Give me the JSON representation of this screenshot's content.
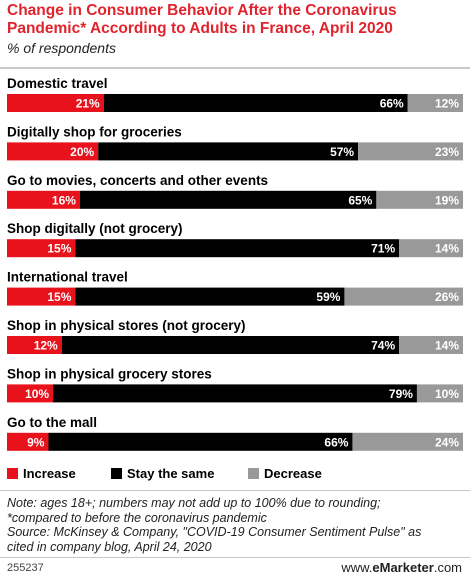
{
  "title": "Change in Consumer Behavior After the Coronavirus Pandemic* According to Adults in France, April 2020",
  "subtitle": "% of respondents",
  "colors": {
    "title": "#e1232d",
    "increase": "#e8121c",
    "same": "#000000",
    "decrease": "#999999"
  },
  "chart_data": {
    "type": "bar",
    "stacked": true,
    "orientation": "horizontal",
    "categories": [
      "Domestic travel",
      "Digitally shop for groceries",
      "Go to movies, concerts and other events",
      "Shop digitally (not grocery)",
      "International travel",
      "Shop in physical stores (not grocery)",
      "Shop in physical grocery stores",
      "Go to the mall"
    ],
    "series": [
      {
        "name": "Increase",
        "values": [
          21,
          20,
          16,
          15,
          15,
          12,
          10,
          9
        ]
      },
      {
        "name": "Stay the same",
        "values": [
          66,
          57,
          65,
          71,
          59,
          74,
          79,
          66
        ]
      },
      {
        "name": "Decrease",
        "values": [
          12,
          23,
          19,
          14,
          26,
          14,
          10,
          24
        ]
      }
    ],
    "value_suffix": "%",
    "legend_position": "bottom-left"
  },
  "legend": [
    "Increase",
    "Stay the same",
    "Decrease"
  ],
  "notes": [
    "Note: ages 18+; numbers may not add up to 100% due to rounding;",
    "*compared to before the coronavirus pandemic",
    "Source: McKinsey & Company, \"COVID-19 Consumer Sentiment Pulse\" as",
    "cited in company blog, April 24, 2020"
  ],
  "footer": {
    "id": "255237",
    "brand_prefix": "www.",
    "brand_bold": "eMarketer",
    "brand_suffix": ".com"
  }
}
